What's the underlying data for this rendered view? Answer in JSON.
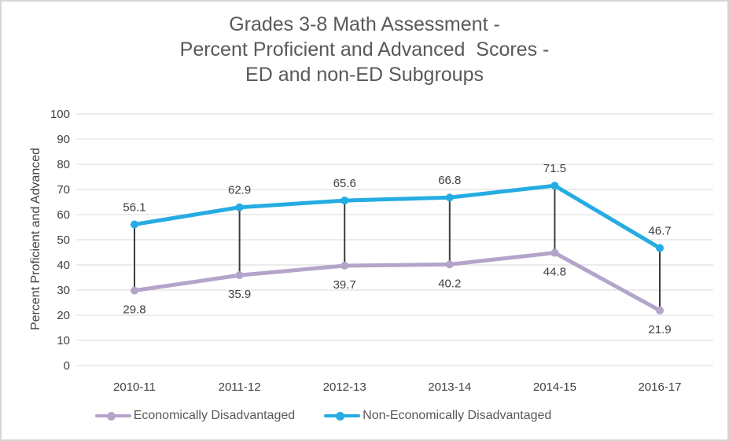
{
  "chart_data": {
    "type": "line",
    "title": "Grades 3-8 Math Assessment -\nPercent Proficient and Advanced  Scores -\nED and non-ED Subgroups",
    "title_lines": [
      "Grades 3-8 Math Assessment -",
      "Percent Proficient and Advanced  Scores -",
      "ED and non-ED Subgroups"
    ],
    "ylabel": "Percent Proficient and Advanced",
    "xlabel": "",
    "categories": [
      "2010-11",
      "2011-12",
      "2012-13",
      "2013-14",
      "2014-15",
      "2016-17"
    ],
    "series": [
      {
        "name": "Economically Disadvantaged",
        "values": [
          29.8,
          35.9,
          39.7,
          40.2,
          44.8,
          21.9
        ],
        "color": "#b3a4ca",
        "label_position": "below"
      },
      {
        "name": "Non-Economically Disadvantaged",
        "values": [
          56.1,
          62.9,
          65.6,
          66.8,
          71.5,
          46.7
        ],
        "color": "#25ace3",
        "label_position": "above"
      }
    ],
    "ylim": [
      0,
      100
    ],
    "ytick_step": 10,
    "yticks": [
      0,
      10,
      20,
      30,
      40,
      50,
      60,
      70,
      80,
      90,
      100
    ],
    "grid": "horizontal",
    "high_low_lines": true,
    "legend_position": "bottom"
  },
  "styles": {
    "title_color": "#595959",
    "axis_text_color": "#404040",
    "data_label_color": "#404040",
    "gridline_color": "#d9d9d9",
    "high_low_color": "#3c3c3c",
    "legend_text_color": "#595959",
    "border_color": "#d7d7d7",
    "background": "#ffffff"
  }
}
